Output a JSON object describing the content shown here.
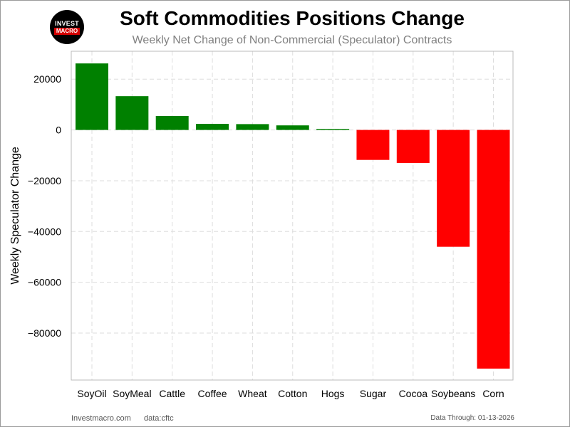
{
  "header": {
    "logo_line1": "INVEST",
    "logo_line2": "MACRO",
    "title": "Soft Commodities Positions Change",
    "subtitle": "Weekly Net Change of Non-Commercial (Speculator) Contracts"
  },
  "footer": {
    "site": "Investmacro.com",
    "data_source": "data:cftc",
    "data_through": "Data Through: 01-13-2026"
  },
  "colors": {
    "positive": "#008000",
    "negative": "#ff0000",
    "grid": "#dddddd",
    "axis_frame": "#bbbbbb"
  },
  "chart_data": {
    "type": "bar",
    "title": "Soft Commodities Positions Change",
    "subtitle": "Weekly Net Change of Non-Commercial (Speculator) Contracts",
    "xlabel": "",
    "ylabel": "Weekly Speculator Change",
    "categories": [
      "SoyOil",
      "SoyMeal",
      "Cattle",
      "Coffee",
      "Wheat",
      "Cotton",
      "Hogs",
      "Sugar",
      "Cocoa",
      "Soybeans",
      "Corn"
    ],
    "values": [
      26200,
      13300,
      5500,
      2400,
      2300,
      1800,
      400,
      -11800,
      -13000,
      -46000,
      -94000
    ],
    "yticks": [
      20000,
      0,
      -20000,
      -40000,
      -60000,
      -80000
    ],
    "ylim": [
      -98500,
      31000
    ],
    "grid": true
  }
}
